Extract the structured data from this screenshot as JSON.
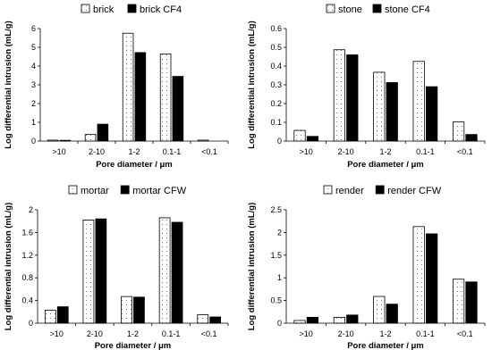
{
  "colors": {
    "bar_outline": "#000000",
    "fill_dark": "#000000",
    "fill_light": "#ffffff",
    "dots": "#555555"
  },
  "chart_data": [
    {
      "type": "bar",
      "categories": [
        ">10",
        "2-10",
        "1-2",
        "0.1-1",
        "<0.1"
      ],
      "series": [
        {
          "name": "brick",
          "values": [
            0.05,
            0.35,
            5.75,
            4.65,
            0.05
          ],
          "pattern": "dotted"
        },
        {
          "name": "brick CF4",
          "values": [
            0.04,
            0.9,
            4.72,
            3.45,
            0.0
          ],
          "pattern": "solid"
        }
      ],
      "xlabel": "Pore diameter / μm",
      "ylabel": "Log differential intrusion (mL/g)",
      "ylim": [
        0,
        6
      ],
      "yticks": [
        "0",
        "1",
        "2",
        "3",
        "4",
        "5",
        "6"
      ],
      "legend": "top-center",
      "grid": false
    },
    {
      "type": "bar",
      "categories": [
        ">10",
        "2-10",
        "1-2",
        "0.1-1",
        "<0.1"
      ],
      "series": [
        {
          "name": "stone",
          "values": [
            0.057,
            0.487,
            0.367,
            0.425,
            0.102
          ],
          "pattern": "dotted"
        },
        {
          "name": "stone CF4",
          "values": [
            0.025,
            0.46,
            0.312,
            0.29,
            0.035
          ],
          "pattern": "solid"
        }
      ],
      "xlabel": "Pore diameter / μm",
      "ylabel": "Log differential intrusion (mL/g)",
      "ylim": [
        0,
        0.6
      ],
      "yticks": [
        "0",
        "0.1",
        "0.2",
        "0.3",
        "0.4",
        "0.5",
        "0.6"
      ],
      "legend": "top-center",
      "grid": false
    },
    {
      "type": "bar",
      "categories": [
        ">10",
        "2-10",
        "1-2",
        "0.1-1",
        "<0.1"
      ],
      "series": [
        {
          "name": "mortar",
          "values": [
            0.23,
            1.82,
            0.47,
            1.86,
            0.15
          ],
          "pattern": "dotted"
        },
        {
          "name": "mortar CFW",
          "values": [
            0.29,
            1.84,
            0.46,
            1.78,
            0.11
          ],
          "pattern": "solid"
        }
      ],
      "xlabel": "Pore diameter / μm",
      "ylabel": "Log differential intrusion (mL/g)",
      "ylim": [
        0,
        2
      ],
      "yticks": [
        "0",
        "0.4",
        "0.8",
        "1.2",
        "1.6",
        "2"
      ],
      "legend": "top-center",
      "grid": false
    },
    {
      "type": "bar",
      "categories": [
        ">10",
        "2-10",
        "1-2",
        "0.1-1",
        "<0.1"
      ],
      "series": [
        {
          "name": "render",
          "values": [
            0.06,
            0.13,
            0.59,
            2.13,
            0.97
          ],
          "pattern": "dotted"
        },
        {
          "name": "render CFW",
          "values": [
            0.13,
            0.18,
            0.42,
            1.97,
            0.91
          ],
          "pattern": "solid"
        }
      ],
      "xlabel": "Pore diameter / μm",
      "ylabel": "Log differential intrusion (mL/g)",
      "ylim": [
        0,
        2.5
      ],
      "yticks": [
        "0",
        "0.5",
        "1",
        "1.5",
        "2",
        "2.5"
      ],
      "legend": "top-center",
      "grid": false
    }
  ]
}
